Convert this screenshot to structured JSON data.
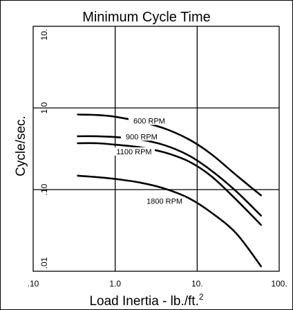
{
  "chart_data": {
    "type": "line",
    "title": "Minimum Cycle Time",
    "xlabel": "Load Inertia - lb./ft.",
    "xlabel_superscript": "2",
    "ylabel": "Cycle/sec.",
    "x_scale": "log",
    "y_scale": "log",
    "xlim": [
      0.1,
      100
    ],
    "ylim": [
      0.01,
      10
    ],
    "x_ticks": [
      0.1,
      1,
      10,
      100
    ],
    "x_tick_labels": [
      ".10",
      "1.0",
      "10.",
      "100."
    ],
    "y_ticks": [
      0.01,
      0.1,
      1,
      10
    ],
    "y_tick_labels": [
      ".01",
      ".10",
      "1.0",
      "10."
    ],
    "grid": true,
    "legend": "none",
    "series": [
      {
        "name": "600 RPM",
        "points": [
          [
            0.35,
            0.83
          ],
          [
            0.6,
            0.82
          ],
          [
            1,
            0.78
          ],
          [
            2,
            0.68
          ],
          [
            4,
            0.56
          ],
          [
            8,
            0.41
          ],
          [
            15,
            0.27
          ],
          [
            30,
            0.15
          ],
          [
            60,
            0.085
          ]
        ]
      },
      {
        "name": "900 RPM",
        "points": [
          [
            0.35,
            0.45
          ],
          [
            0.6,
            0.45
          ],
          [
            1,
            0.44
          ],
          [
            2,
            0.41
          ],
          [
            4,
            0.35
          ],
          [
            8,
            0.26
          ],
          [
            15,
            0.17
          ],
          [
            30,
            0.095
          ],
          [
            60,
            0.048
          ]
        ]
      },
      {
        "name": "1100 RPM",
        "points": [
          [
            0.35,
            0.37
          ],
          [
            0.6,
            0.37
          ],
          [
            1,
            0.355
          ],
          [
            2,
            0.33
          ],
          [
            4,
            0.285
          ],
          [
            8,
            0.22
          ],
          [
            15,
            0.145
          ],
          [
            30,
            0.075
          ],
          [
            60,
            0.037
          ]
        ]
      },
      {
        "name": "1800 RPM",
        "points": [
          [
            0.35,
            0.148
          ],
          [
            0.6,
            0.142
          ],
          [
            1,
            0.135
          ],
          [
            2,
            0.122
          ],
          [
            4,
            0.103
          ],
          [
            8,
            0.078
          ],
          [
            15,
            0.052
          ],
          [
            30,
            0.029
          ],
          [
            60,
            0.0115
          ]
        ]
      }
    ]
  }
}
